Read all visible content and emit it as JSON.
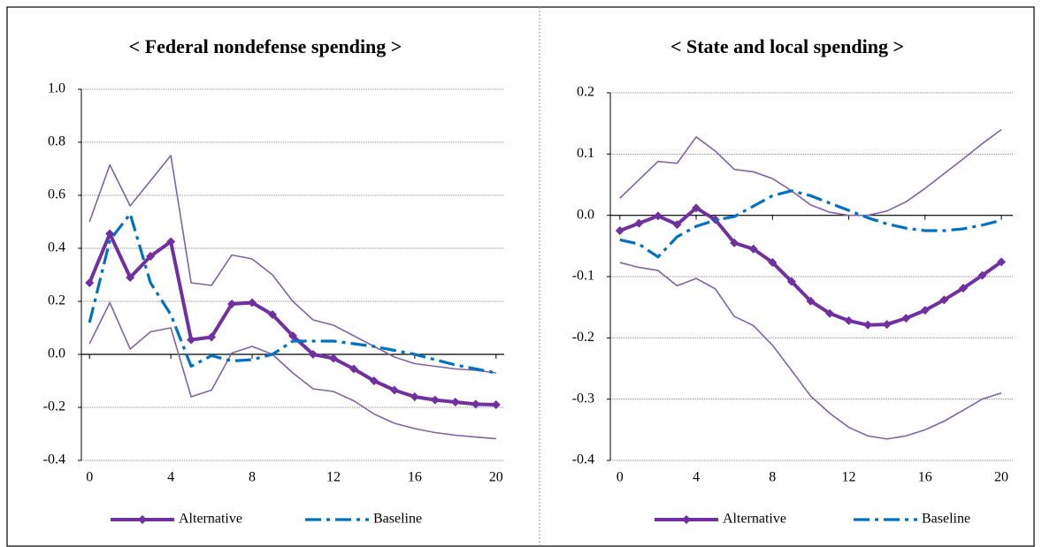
{
  "chart_data": [
    {
      "type": "line",
      "title": "< Federal nondefense spending >",
      "x": [
        0,
        1,
        2,
        3,
        4,
        5,
        6,
        7,
        8,
        9,
        10,
        11,
        12,
        13,
        14,
        15,
        16,
        17,
        18,
        19,
        20
      ],
      "xlim": [
        -0.4,
        20.4
      ],
      "xticks": [
        0,
        4,
        8,
        12,
        16,
        20
      ],
      "ylim": [
        -0.4,
        1.0
      ],
      "yticks": [
        -0.4,
        -0.2,
        {
          "value": 0,
          "label": "0.0"
        },
        0.2,
        0.4,
        0.6,
        0.8,
        {
          "value": 1,
          "label": "1.0"
        }
      ],
      "grid": true,
      "series": [
        {
          "color": "#8064a2",
          "style": "thin",
          "values": [
            0.5,
            0.715,
            0.56,
            0.655,
            0.75,
            0.27,
            0.26,
            0.375,
            0.36,
            0.3,
            0.2,
            0.13,
            0.11,
            0.07,
            0.03,
            -0.01,
            -0.035,
            -0.045,
            -0.055,
            -0.06,
            -0.07
          ]
        },
        {
          "color": "#8064a2",
          "style": "thin",
          "values": [
            0.04,
            0.195,
            0.02,
            0.085,
            0.1,
            -0.16,
            -0.135,
            0.005,
            0.03,
            0.0,
            -0.07,
            -0.13,
            -0.14,
            -0.175,
            -0.225,
            -0.26,
            -0.28,
            -0.295,
            -0.305,
            -0.312,
            -0.318
          ]
        },
        {
          "name": "Alternative",
          "color": "#7030a0",
          "style": "diamond",
          "values": [
            0.27,
            0.455,
            0.29,
            0.37,
            0.425,
            0.055,
            0.065,
            0.19,
            0.195,
            0.15,
            0.07,
            0.0,
            -0.015,
            -0.055,
            -0.1,
            -0.135,
            -0.16,
            -0.172,
            -0.18,
            -0.188,
            -0.19
          ]
        },
        {
          "name": "Baseline",
          "color": "#0070c0",
          "style": "dashdot",
          "values": [
            0.12,
            0.43,
            0.53,
            0.27,
            0.15,
            -0.045,
            -0.005,
            -0.025,
            -0.02,
            0.0,
            0.05,
            0.05,
            0.05,
            0.04,
            0.03,
            0.015,
            0.0,
            -0.02,
            -0.04,
            -0.055,
            -0.07
          ]
        }
      ]
    },
    {
      "type": "line",
      "title": "< State and local spending >",
      "x": [
        0,
        1,
        2,
        3,
        4,
        5,
        6,
        7,
        8,
        9,
        10,
        11,
        12,
        13,
        14,
        15,
        16,
        17,
        18,
        19,
        20
      ],
      "xlim": [
        -0.5,
        20.6
      ],
      "xticks": [
        0,
        4,
        8,
        12,
        16,
        20
      ],
      "ylim": [
        -0.4,
        0.2
      ],
      "yticks": [
        -0.4,
        -0.3,
        -0.2,
        -0.1,
        {
          "value": 0,
          "label": "0.0"
        },
        0.1,
        0.2
      ],
      "grid": true,
      "series": [
        {
          "color": "#8064a2",
          "style": "thin",
          "values": [
            0.028,
            0.058,
            0.088,
            0.085,
            0.128,
            0.105,
            0.075,
            0.071,
            0.06,
            0.04,
            0.017,
            0.005,
            0.0,
            0.0,
            0.007,
            0.022,
            0.044,
            0.068,
            0.092,
            0.117,
            0.14
          ]
        },
        {
          "color": "#8064a2",
          "style": "thin",
          "values": [
            -0.077,
            -0.085,
            -0.09,
            -0.115,
            -0.103,
            -0.12,
            -0.165,
            -0.18,
            -0.212,
            -0.253,
            -0.295,
            -0.323,
            -0.346,
            -0.36,
            -0.365,
            -0.36,
            -0.35,
            -0.336,
            -0.318,
            -0.3,
            -0.29
          ]
        },
        {
          "name": "Alternative",
          "color": "#7030a0",
          "style": "diamond",
          "values": [
            -0.025,
            -0.013,
            -0.001,
            -0.015,
            0.012,
            -0.007,
            -0.045,
            -0.055,
            -0.077,
            -0.108,
            -0.14,
            -0.16,
            -0.172,
            -0.179,
            -0.178,
            -0.168,
            -0.155,
            -0.138,
            -0.119,
            -0.098,
            -0.076
          ]
        },
        {
          "name": "Baseline",
          "color": "#0070c0",
          "style": "dashdot",
          "values": [
            -0.04,
            -0.047,
            -0.068,
            -0.035,
            -0.018,
            -0.008,
            -0.002,
            0.015,
            0.032,
            0.04,
            0.032,
            0.02,
            0.008,
            -0.004,
            -0.014,
            -0.021,
            -0.025,
            -0.025,
            -0.022,
            -0.016,
            -0.008
          ]
        }
      ]
    }
  ]
}
